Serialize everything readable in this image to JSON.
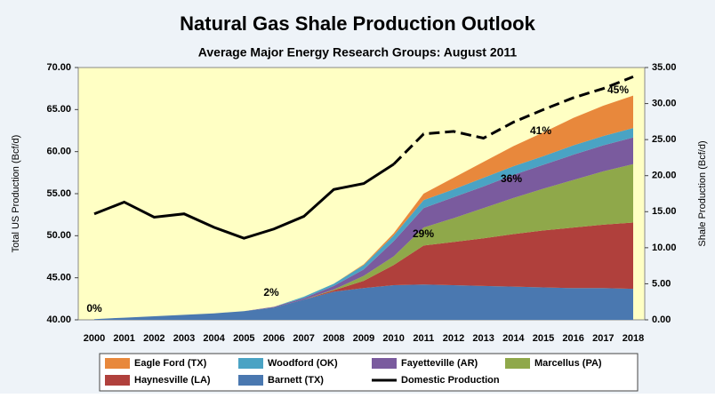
{
  "chart_data": {
    "type": "stacked-area-line",
    "title": "Natural Gas Shale Production Outlook",
    "subtitle": "Average Major Energy Research Groups:   August 2011",
    "y_label": "Total US Production (Bcf/d)",
    "y2_label": "Shale Production (Bcf/d)",
    "categories": [
      "2000",
      "2001",
      "2002",
      "2003",
      "2004",
      "2005",
      "2006",
      "2007",
      "2008",
      "2009",
      "2010",
      "2011",
      "2012",
      "2013",
      "2014",
      "2015",
      "2016",
      "2017",
      "2018"
    ],
    "ylim": [
      40,
      70
    ],
    "yticks": [
      {
        "value": 40,
        "label": "40.00"
      },
      {
        "value": 45,
        "label": "45.00"
      },
      {
        "value": 50,
        "label": "50.00"
      },
      {
        "value": 55,
        "label": "55.00"
      },
      {
        "value": 60,
        "label": "60.00"
      },
      {
        "value": 65,
        "label": "65.00"
      },
      {
        "value": 70,
        "label": "70.00"
      }
    ],
    "y2lim": [
      0,
      35
    ],
    "y2ticks": [
      {
        "value": 0,
        "label": "0.00"
      },
      {
        "value": 5,
        "label": "5.00"
      },
      {
        "value": 10,
        "label": "10.00"
      },
      {
        "value": 15,
        "label": "15.00"
      },
      {
        "value": 20,
        "label": "20.00"
      },
      {
        "value": 25,
        "label": "25.00"
      },
      {
        "value": 30,
        "label": "30.00"
      },
      {
        "value": 35,
        "label": "35.00"
      }
    ],
    "series": [
      {
        "name": "Eagle Ford (TX)",
        "color": "#e8883c",
        "axis": "y2",
        "values": [
          0,
          0,
          0,
          0,
          0,
          0,
          0,
          0,
          0,
          0.1,
          0.3,
          0.9,
          1.6,
          2.2,
          2.8,
          3.3,
          3.8,
          4.2,
          4.5
        ]
      },
      {
        "name": "Woodford (OK)",
        "color": "#4aa3c4",
        "axis": "y2",
        "values": [
          0,
          0,
          0,
          0,
          0,
          0,
          0,
          0.2,
          0.3,
          0.6,
          0.8,
          1.1,
          1.1,
          1.2,
          1.2,
          1.2,
          1.3,
          1.3,
          1.3
        ]
      },
      {
        "name": "Fayetteville (AR)",
        "color": "#7a5b9e",
        "axis": "y2",
        "values": [
          0,
          0,
          0,
          0,
          0,
          0,
          0.1,
          0.2,
          0.5,
          0.9,
          2.1,
          2.7,
          2.9,
          3.0,
          3.2,
          3.3,
          3.5,
          3.6,
          3.7
        ]
      },
      {
        "name": "Marcellus (PA)",
        "color": "#8fa84a",
        "axis": "y2",
        "values": [
          0,
          0,
          0,
          0,
          0,
          0,
          0,
          0,
          0.1,
          0.7,
          1.2,
          2.5,
          3.3,
          4.2,
          5.0,
          5.8,
          6.6,
          7.4,
          8.1
        ]
      },
      {
        "name": "Haynesville (LA)",
        "color": "#b0403c",
        "axis": "y2",
        "values": [
          0,
          0,
          0,
          0,
          0,
          0,
          0,
          0,
          0.2,
          1.0,
          2.8,
          5.4,
          6.0,
          6.6,
          7.3,
          7.9,
          8.4,
          8.8,
          9.2
        ]
      },
      {
        "name": "Barnett (TX)",
        "color": "#4a78b0",
        "axis": "y2",
        "values": [
          0.1,
          0.3,
          0.5,
          0.7,
          0.9,
          1.2,
          1.7,
          2.8,
          3.9,
          4.4,
          4.8,
          4.9,
          4.8,
          4.7,
          4.6,
          4.5,
          4.4,
          4.4,
          4.3
        ]
      },
      {
        "name": "Domestic Production",
        "color": "#000000",
        "axis": "y",
        "line": true,
        "dashed_after": "2010",
        "values": [
          52.6,
          54.0,
          52.2,
          52.6,
          51.0,
          49.7,
          50.8,
          52.3,
          55.5,
          56.2,
          58.5,
          62.1,
          62.4,
          61.6,
          63.5,
          65.0,
          66.4,
          67.5,
          68.9
        ]
      }
    ],
    "annotations": [
      "0%",
      "2%",
      "29%",
      "36%",
      "41%",
      "45%"
    ]
  }
}
